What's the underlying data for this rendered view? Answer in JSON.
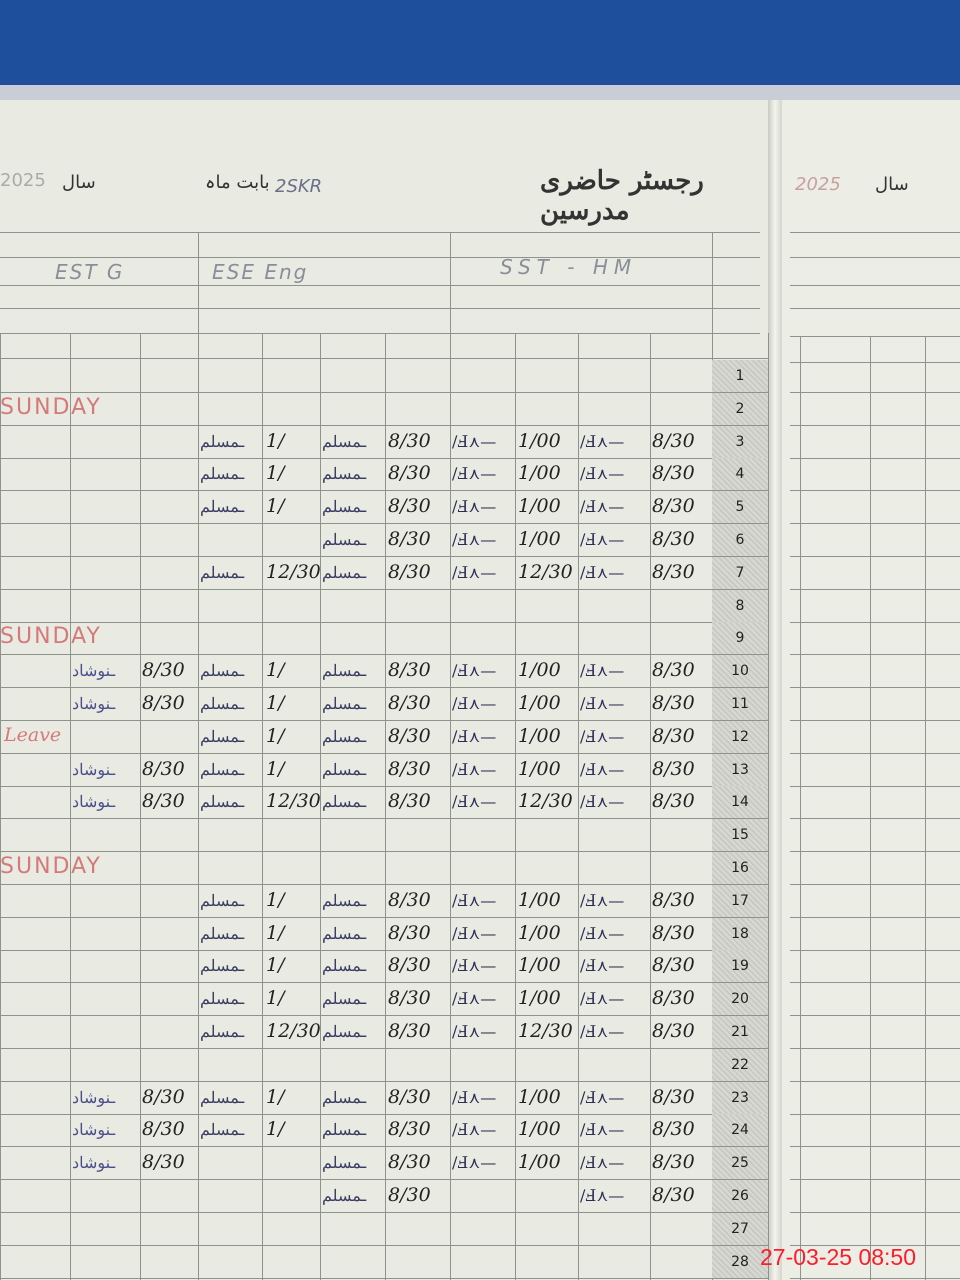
{
  "header": {
    "title": "رجسٹر حاضری مدرسین",
    "month_label": "بابت ماہ",
    "year_label": "سال",
    "year_value": "2025",
    "school_code": "2SKR",
    "right_year_label": "سال",
    "right_year_value": "2025"
  },
  "teachers": [
    {
      "designation": "SST - HM"
    },
    {
      "designation": "ESE Eng"
    },
    {
      "designation": "EST G"
    }
  ],
  "sunday_label": "SUNDAY",
  "leave_label": "Leave",
  "rows": [
    {
      "date": "1"
    },
    {
      "date": "2",
      "sunday": true
    },
    {
      "date": "3",
      "hm_in": "8/30",
      "hm_out": "1/00",
      "eng_in": "8/30",
      "eng_out": "1/"
    },
    {
      "date": "4",
      "hm_in": "8/30",
      "hm_out": "1/00",
      "eng_in": "8/30",
      "eng_out": "1/"
    },
    {
      "date": "5",
      "hm_in": "8/30",
      "hm_out": "1/00",
      "eng_in": "8/30",
      "eng_out": "1/"
    },
    {
      "date": "6",
      "hm_in": "8/30",
      "hm_out": "1/00",
      "eng_in": "8/30",
      "eng_out": ""
    },
    {
      "date": "7",
      "hm_in": "8/30",
      "hm_out": "12/30",
      "eng_in": "8/30",
      "eng_out": "12/30"
    },
    {
      "date": "8"
    },
    {
      "date": "9",
      "sunday": true
    },
    {
      "date": "10",
      "hm_in": "8/30",
      "hm_out": "1/00",
      "eng_in": "8/30",
      "eng_out": "1/",
      "g_in": "8/30"
    },
    {
      "date": "11",
      "hm_in": "8/30",
      "hm_out": "1/00",
      "eng_in": "8/30",
      "eng_out": "1/",
      "g_in": "8/30"
    },
    {
      "date": "12",
      "hm_in": "8/30",
      "hm_out": "1/00",
      "eng_in": "8/30",
      "eng_out": "1/"
    },
    {
      "date": "13",
      "hm_in": "8/30",
      "hm_out": "1/00",
      "eng_in": "8/30",
      "eng_out": "1/",
      "g_in": "8/30"
    },
    {
      "date": "14",
      "hm_in": "8/30",
      "hm_out": "12/30",
      "eng_in": "8/30",
      "eng_out": "12/30",
      "g_in": "8/30"
    },
    {
      "date": "15"
    },
    {
      "date": "16",
      "sunday": true
    },
    {
      "date": "17",
      "hm_in": "8/30",
      "hm_out": "1/00",
      "eng_in": "8/30",
      "eng_out": "1/"
    },
    {
      "date": "18",
      "hm_in": "8/30",
      "hm_out": "1/00",
      "eng_in": "8/30",
      "eng_out": "1/"
    },
    {
      "date": "19",
      "hm_in": "8/30",
      "hm_out": "1/00",
      "eng_in": "8/30",
      "eng_out": "1/"
    },
    {
      "date": "20",
      "hm_in": "8/30",
      "hm_out": "1/00",
      "eng_in": "8/30",
      "eng_out": "1/"
    },
    {
      "date": "21",
      "hm_in": "8/30",
      "hm_out": "12/30",
      "eng_in": "8/30",
      "eng_out": "12/30"
    },
    {
      "date": "22"
    },
    {
      "date": "23",
      "hm_in": "8/30",
      "hm_out": "1/00",
      "eng_in": "8/30",
      "eng_out": "1/",
      "g_in": "8/30"
    },
    {
      "date": "24",
      "hm_in": "8/30",
      "hm_out": "1/00",
      "eng_in": "8/30",
      "eng_out": "1/",
      "g_in": "8/30"
    },
    {
      "date": "25",
      "hm_in": "8/30",
      "hm_out": "1/00",
      "eng_in": "8/30",
      "g_in": "8/30"
    },
    {
      "date": "26",
      "hm_in": "8/30",
      "eng_in": "8/30"
    },
    {
      "date": "27"
    },
    {
      "date": "28"
    }
  ],
  "timestamp": "27-03-25  08:50"
}
